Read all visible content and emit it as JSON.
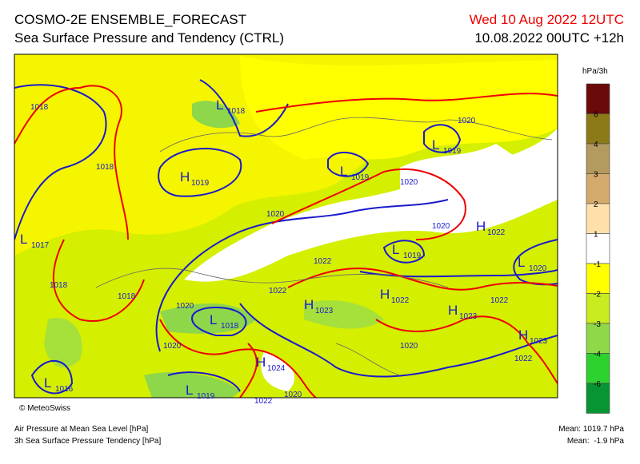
{
  "header": {
    "title": "COSMO-2E ENSEMBLE_FORECAST",
    "subtitle": "Sea Surface Pressure and Tendency (CTRL)",
    "valid_time": "Wed 10 Aug 2022 12UTC",
    "run": "10.08.2022 00UTC +12h"
  },
  "map": {
    "copyright": "© MeteoSwiss",
    "centers": [
      {
        "type": "L",
        "value": "1018"
      },
      {
        "type": "L",
        "value": "1019"
      },
      {
        "type": "H",
        "value": "1019"
      },
      {
        "type": "L",
        "value": "1019"
      },
      {
        "type": "L",
        "value": "1017"
      },
      {
        "type": "H",
        "value": "1022"
      },
      {
        "type": "L",
        "value": "1019"
      },
      {
        "type": "L",
        "value": "1020"
      },
      {
        "type": "H",
        "value": "1023"
      },
      {
        "type": "H",
        "value": "1022"
      },
      {
        "type": "H",
        "value": "1023"
      },
      {
        "type": "L",
        "value": "1018"
      },
      {
        "type": "H",
        "value": "1023"
      },
      {
        "type": "H",
        "value": "1024"
      },
      {
        "type": "L",
        "value": "1016"
      },
      {
        "type": "L",
        "value": "1019"
      }
    ],
    "isobar_labels": [
      "1018",
      "1020",
      "1018",
      "1020",
      "1020",
      "1020",
      "1018",
      "1022",
      "1022",
      "1018",
      "1020",
      "1022",
      "1020",
      "1020",
      "1022",
      "1022",
      "1020"
    ]
  },
  "legend": {
    "unit": "hPa/3h",
    "labels": [
      "6",
      "4",
      "3",
      "2",
      "1",
      "-1",
      "-2",
      "-3",
      "-4",
      "-6"
    ]
  },
  "footer": {
    "line1": "Air Pressure at Mean Sea Level [hPa]",
    "line2": "3h Sea Surface Pressure Tendency [hPa]",
    "mean_pressure": "Mean: 1019.7 hPa",
    "mean_tendency": "Mean:  -1.9 hPa"
  }
}
